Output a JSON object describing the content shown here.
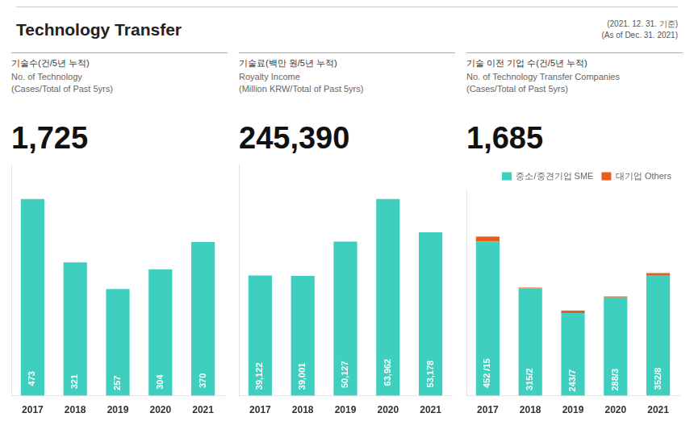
{
  "title": "Technology Transfer",
  "annotations": [
    "(2021. 12. 31. 기준)",
    "(As of Dec. 31. 2021)"
  ],
  "chart_data": [
    {
      "type": "bar",
      "title": "기술수(건/5년 누적)",
      "subtitle": [
        "No. of Technology",
        "(Cases/Total of Past 5yrs)"
      ],
      "annotations": [
        "1,725"
      ],
      "categories": [
        "2017",
        "2018",
        "2019",
        "2020",
        "2021"
      ],
      "values": [
        473,
        321,
        257,
        304,
        370
      ],
      "color": "#3ecfbf",
      "ylim": [
        0,
        558.14
      ],
      "grid": false,
      "tick_labels": "x",
      "data_labels": true
    },
    {
      "type": "bar",
      "title": "기술료(백만 원/5년 누적)",
      "subtitle": [
        "Royalty Income",
        "(Million KRW/Total of Past 5yrs)"
      ],
      "annotations": [
        "245,390"
      ],
      "categories": [
        "2017",
        "2018",
        "2019",
        "2020",
        "2021"
      ],
      "values": [
        39122,
        39001,
        50127,
        63962,
        53178
      ],
      "value_labels": [
        "39,122",
        "39,001",
        "50,127",
        "63,962",
        "53,178"
      ],
      "color": "#3ecfbf",
      "ylim": [
        0,
        75475.16
      ],
      "grid": false,
      "tick_labels": "x",
      "data_labels": true
    },
    {
      "type": "bar",
      "title": "기술 이전 기업 수(건/5년 누적)",
      "subtitle": [
        "No. of Technology Transfer Companies",
        "(Cases/Total of Past 5yrs)"
      ],
      "annotations": [
        "1,685"
      ],
      "categories": [
        "2017",
        "2018",
        "2019",
        "2020",
        "2021"
      ],
      "series": [
        {
          "name": "중소/중견기업 SME",
          "color": "#3ecfbf",
          "values": [
            452,
            315,
            243,
            288,
            352
          ],
          "value_labels": [
            "452 /15",
            "315/2",
            "243/7",
            "288/3",
            "352/8"
          ]
        },
        {
          "name": "대기업 Others",
          "color": "#e85d1a",
          "values": [
            15,
            2,
            7,
            3,
            8
          ]
        }
      ],
      "stacked": true,
      "ylim": [
        0,
        607.1
      ],
      "grid": false,
      "tick_labels": "x",
      "data_labels": true,
      "legend": "upper right"
    }
  ]
}
